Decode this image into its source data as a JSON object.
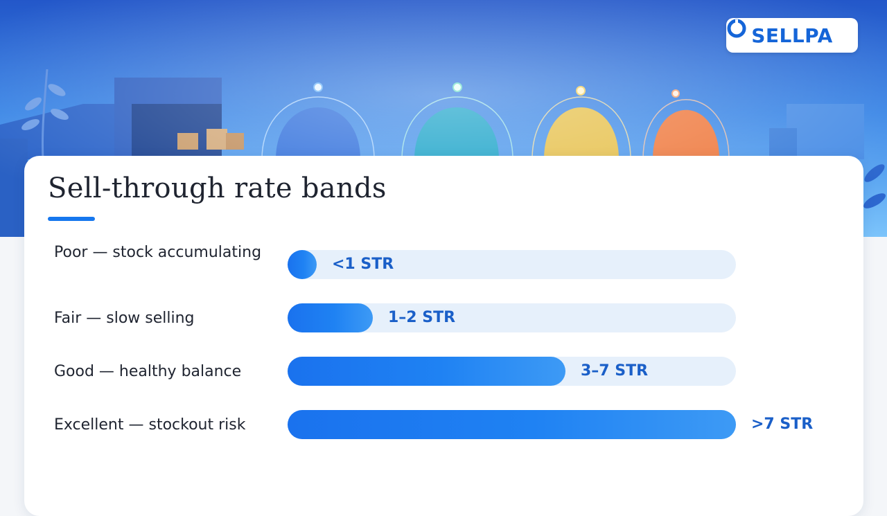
{
  "brand": {
    "name": "SELLPA",
    "accent_color": "#1677ee"
  },
  "hero": {
    "orb_colors": [
      "#2f6fdc",
      "#19a3c9",
      "#e6c04a",
      "#ef7a3f"
    ]
  },
  "chart_data": {
    "type": "bar",
    "orientation": "horizontal",
    "title": "Sell-through rate bands",
    "categories": [
      "Poor — stock accumulating",
      "Fair — slow selling",
      "Good — healthy balance",
      "Excellent — stockout risk"
    ],
    "value_labels": [
      "<1 STR",
      "1–2 STR",
      "3–7 STR",
      ">7 STR"
    ],
    "fill_fractions": [
      0.065,
      0.19,
      0.62,
      1.0
    ],
    "colors": {
      "fill": "#1f82f3",
      "track": "#e6f0fb",
      "label": "#1a5fc8"
    },
    "grid": false,
    "legend": "none"
  }
}
